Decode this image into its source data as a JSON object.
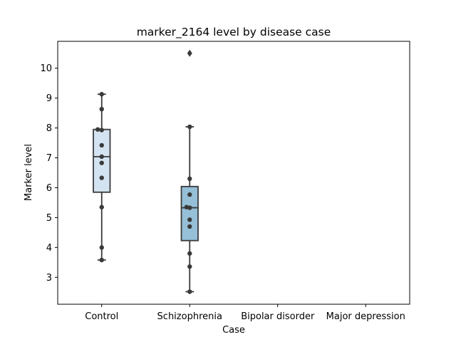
{
  "chart_data": {
    "type": "box",
    "title": "marker_2164 level by disease case",
    "xlabel": "Case",
    "ylabel": "Marker level",
    "categories": [
      "Control",
      "Schizophrenia",
      "Bipolar disorder",
      "Major depression"
    ],
    "ylim": [
      2.1,
      10.9
    ],
    "yticks": [
      3,
      4,
      5,
      6,
      7,
      8,
      9,
      10
    ],
    "grid": false,
    "legend": "none",
    "colors": {
      "box_fill": [
        "#d4e3f1",
        "#96bfd8"
      ],
      "line": "#3a3a3a",
      "point": "#3a3a3a"
    },
    "boxes": [
      {
        "category": "Control",
        "q1": 5.85,
        "median": 7.04,
        "q3": 7.95,
        "whisker_low": 3.58,
        "whisker_high": 9.13,
        "outliers": []
      },
      {
        "category": "Schizophrenia",
        "q1": 4.23,
        "median": 5.33,
        "q3": 6.04,
        "whisker_low": 2.52,
        "whisker_high": 8.04,
        "outliers": [
          10.5
        ]
      }
    ],
    "points": [
      {
        "category": "Control",
        "values": [
          9.13,
          8.63,
          7.95,
          7.93,
          7.42,
          7.04,
          6.83,
          6.33,
          5.35,
          4.0,
          3.58
        ],
        "jitter": [
          0,
          0,
          -0.15,
          0,
          0,
          0,
          0,
          0,
          0,
          0,
          0
        ]
      },
      {
        "category": "Schizophrenia",
        "values": [
          8.04,
          6.3,
          5.77,
          5.35,
          5.33,
          4.93,
          4.7,
          3.8,
          3.36,
          2.52
        ],
        "jitter": [
          0,
          0,
          0,
          -0.12,
          0,
          0,
          0,
          0,
          0,
          0
        ]
      }
    ]
  }
}
